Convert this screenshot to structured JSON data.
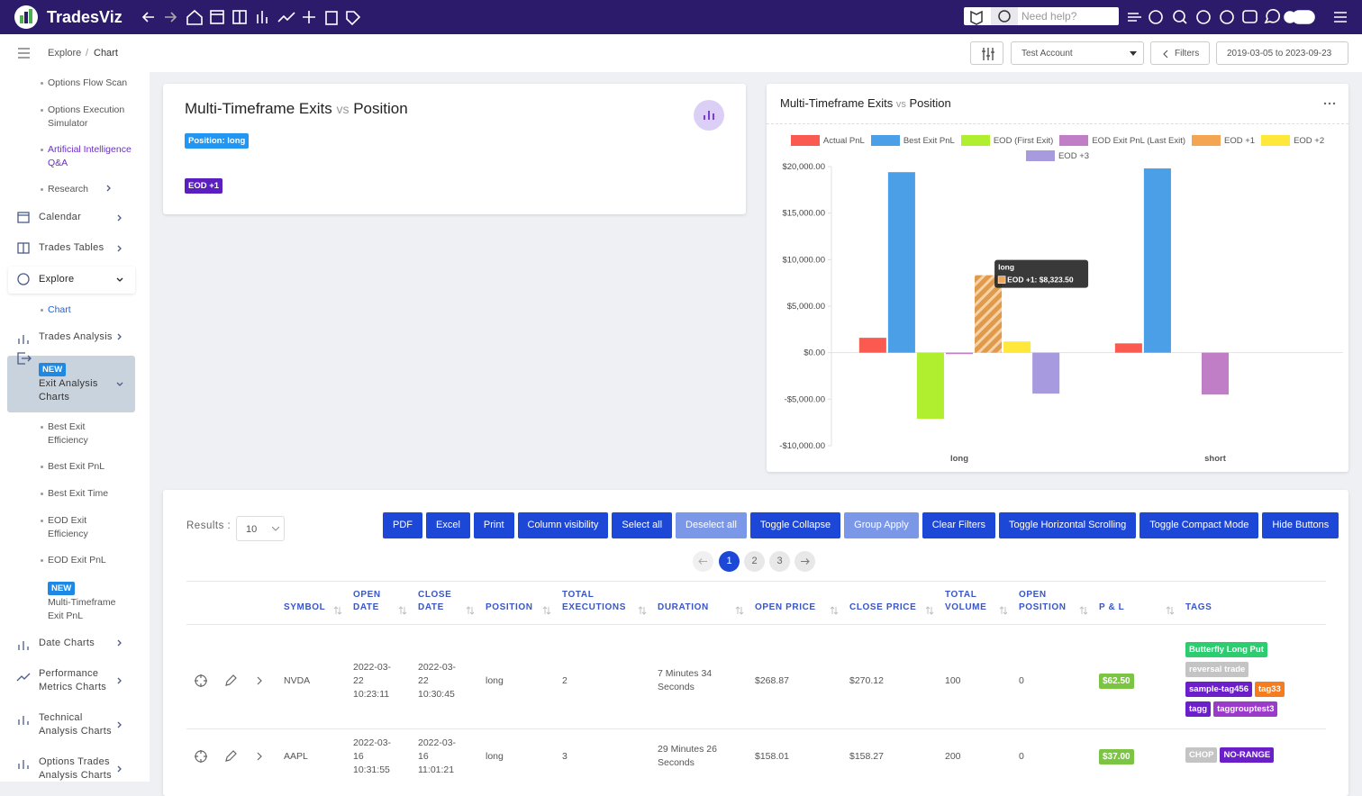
{
  "nav": {
    "brand": "TradesViz",
    "search_placeholder": "Need help?"
  },
  "breadcrumb": {
    "parent": "Explore",
    "separator": "/",
    "current": "Chart"
  },
  "toolbar": {
    "account": "Test Account",
    "filters": "Filters",
    "date_range": "2019-03-05 to 2023-09-23"
  },
  "sidebar": {
    "items": [
      {
        "label": "Options Flow Scan"
      },
      {
        "label": "Options Execution Simulator"
      },
      {
        "label": "Artificial Intelligence Q&A"
      },
      {
        "label": "Research"
      },
      {
        "label": "Calendar"
      },
      {
        "label": "Trades Tables"
      },
      {
        "label": "Explore"
      },
      {
        "label": "Chart"
      },
      {
        "label": "Trades Analysis"
      },
      {
        "label": "Exit Analysis Charts",
        "badge": "NEW"
      },
      {
        "label": "Best Exit Efficiency"
      },
      {
        "label": "Best Exit PnL"
      },
      {
        "label": "Best Exit Time"
      },
      {
        "label": "EOD Exit Efficiency"
      },
      {
        "label": "EOD Exit PnL"
      },
      {
        "label": "Multi-Timeframe Exit PnL",
        "badge": "NEW"
      },
      {
        "label": "Date Charts"
      },
      {
        "label": "Performance Metrics Charts"
      },
      {
        "label": "Technical Analysis Charts"
      },
      {
        "label": "Options Trades Analysis Charts"
      }
    ]
  },
  "summary": {
    "title": "Multi-Timeframe Exits",
    "vs": "vs",
    "by": "Position",
    "tags": [
      "Position: long",
      "EOD +1"
    ]
  },
  "chart": {
    "type": "bar",
    "title": "Multi-Timeframe Exits",
    "vs": "vs",
    "by": "Position",
    "categories": [
      "long",
      "short"
    ],
    "series": [
      {
        "name": "Actual PnL",
        "color": "#fa5a50",
        "values": [
          1600,
          1000
        ]
      },
      {
        "name": "Best Exit PnL",
        "color": "#4a9fe6",
        "values": [
          19400,
          19800
        ]
      },
      {
        "name": "EOD (First Exit)",
        "color": "#b0ef30",
        "values": [
          -7100,
          0
        ]
      },
      {
        "name": "EOD Exit PnL (Last Exit)",
        "color": "#c07ec6",
        "values": [
          -150,
          -4500
        ]
      },
      {
        "name": "EOD +1",
        "color": "#f3a552",
        "values": [
          8323.5,
          0
        ]
      },
      {
        "name": "EOD +2",
        "color": "#ffe83a",
        "values": [
          1200,
          0
        ]
      },
      {
        "name": "EOD +3",
        "color": "#a89adf",
        "values": [
          -4400,
          0
        ]
      }
    ],
    "ylim": [
      -10000,
      20000
    ],
    "yticks": [
      {
        "value": -10000,
        "label": "-$10,000.00"
      },
      {
        "value": -5000,
        "label": "-$5,000.00"
      },
      {
        "value": 0,
        "label": "$0.00"
      },
      {
        "value": 5000,
        "label": "$5,000.00"
      },
      {
        "value": 10000,
        "label": "$10,000.00"
      },
      {
        "value": 15000,
        "label": "$15,000.00"
      },
      {
        "value": 20000,
        "label": "$20,000.00"
      }
    ],
    "grid": false,
    "tooltip": {
      "title": "long",
      "label": "EOD +1: $8,323.50"
    }
  },
  "table": {
    "results_label": "Results :",
    "page_size": "10",
    "buttons": [
      "PDF",
      "Excel",
      "Print",
      "Column visibility",
      "Select all",
      "Deselect all",
      "Toggle Collapse",
      "Group Apply",
      "Clear Filters",
      "Toggle Horizontal Scrolling",
      "Toggle Compact Mode",
      "Hide Buttons"
    ],
    "pages": [
      "1",
      "2",
      "3"
    ],
    "columns": [
      "SYMBOL",
      "OPEN DATE",
      "CLOSE DATE",
      "POSITION",
      "TOTAL EXECUTIONS",
      "DURATION",
      "OPEN PRICE",
      "CLOSE PRICE",
      "TOTAL VOLUME",
      "OPEN POSITION",
      "P & L",
      "TAGS"
    ],
    "rows": [
      [
        "NVDA",
        "2022-03-22 10:23:11",
        "2022-03-22 10:30:45",
        "long",
        "2",
        "7 Minutes 34 Seconds",
        "$268.87",
        "$270.12",
        "100",
        "0",
        "$62.50",
        [
          {
            "text": "Butterfly Long Put",
            "color": "#2ecc71"
          },
          {
            "text": "reversal trade",
            "color": "#c4c4c4"
          },
          {
            "text": "sample-tag456",
            "color": "#6a1fc9"
          },
          {
            "text": "tag33",
            "color": "#f57c1f"
          },
          {
            "text": "tagg",
            "color": "#6a1fc9"
          },
          {
            "text": "taggrouptest3",
            "color": "#9b3bc9"
          }
        ]
      ],
      [
        "AAPL",
        "2022-03-16 10:31:55",
        "2022-03-16 11:01:21",
        "long",
        "3",
        "29 Minutes 26 Seconds",
        "$158.01",
        "$158.27",
        "200",
        "0",
        "$37.00",
        [
          {
            "text": "CHOP",
            "color": "#c4c4c4"
          },
          {
            "text": "NO-RANGE",
            "color": "#6a1fc9"
          }
        ]
      ]
    ]
  }
}
